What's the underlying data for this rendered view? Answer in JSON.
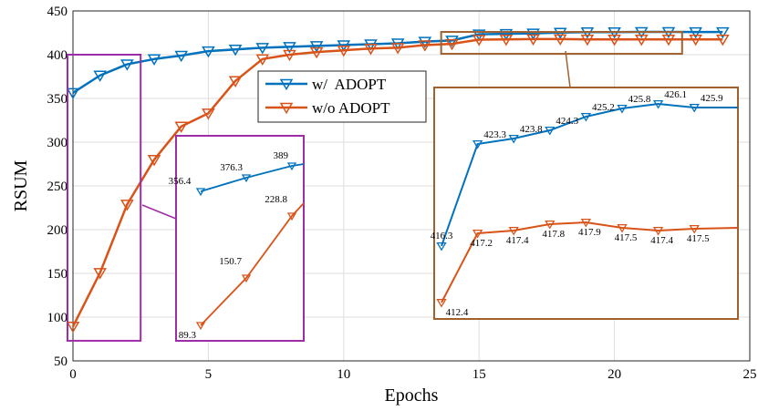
{
  "chart_data": {
    "type": "line",
    "xlabel": "Epochs",
    "ylabel": "RSUM",
    "xlim": [
      0,
      25
    ],
    "ylim": [
      50,
      450
    ],
    "xticks": [
      0,
      5,
      10,
      15,
      20,
      25
    ],
    "yticks": [
      50,
      100,
      150,
      200,
      250,
      300,
      350,
      400,
      450
    ],
    "grid": true,
    "legend_position": "center",
    "x": [
      0,
      1,
      2,
      3,
      4,
      5,
      6,
      7,
      8,
      9,
      10,
      11,
      12,
      13,
      14,
      15,
      16,
      17,
      18,
      19,
      20,
      21,
      22,
      23,
      24
    ],
    "series": [
      {
        "name": "w/  ADOPT",
        "color": "#0072BD",
        "values": [
          356.4,
          376.3,
          389,
          395,
          399,
          404,
          406,
          408,
          409,
          410,
          411,
          412,
          413,
          415,
          416.3,
          423.3,
          423.8,
          424.3,
          425.2,
          425.8,
          425.8,
          426.1,
          426.1,
          425.9,
          425.9
        ]
      },
      {
        "name": "w/o ADOPT",
        "color": "#D95319",
        "values": [
          89.3,
          150.7,
          228.8,
          280,
          318,
          333,
          370,
          395,
          400,
          403,
          405,
          407,
          408,
          411,
          412.4,
          417.2,
          417.4,
          417.8,
          417.9,
          417.5,
          417.4,
          417.4,
          417.5,
          417.5,
          417.5
        ]
      }
    ],
    "insets": [
      {
        "name": "zoom-early-epochs",
        "source_range": {
          "x": [
            0,
            2.5
          ],
          "y": [
            73,
            400
          ]
        },
        "points": 3,
        "labels": {
          "w/  ADOPT": [
            "356.4",
            "376.3",
            "389"
          ],
          "w/o ADOPT": [
            "89.3",
            "150.7",
            "228.8"
          ]
        }
      },
      {
        "name": "zoom-late-epochs",
        "source_range": {
          "x": [
            13.6,
            22.5
          ],
          "y": [
            401,
            426
          ]
        },
        "points": 8,
        "labels": {
          "w/  ADOPT": [
            "416.3",
            "423.3",
            "423.8",
            "424.3",
            "425.2",
            "425.8",
            "426.1",
            "425.9"
          ],
          "w/o ADOPT": [
            "412.4",
            "417.2",
            "417.4",
            "417.8",
            "417.9",
            "417.5",
            "417.4",
            "417.5"
          ]
        }
      }
    ],
    "annotation_colors": {
      "inset1_box": "#9D2DA6",
      "inset2_box": "#A0612F"
    }
  }
}
